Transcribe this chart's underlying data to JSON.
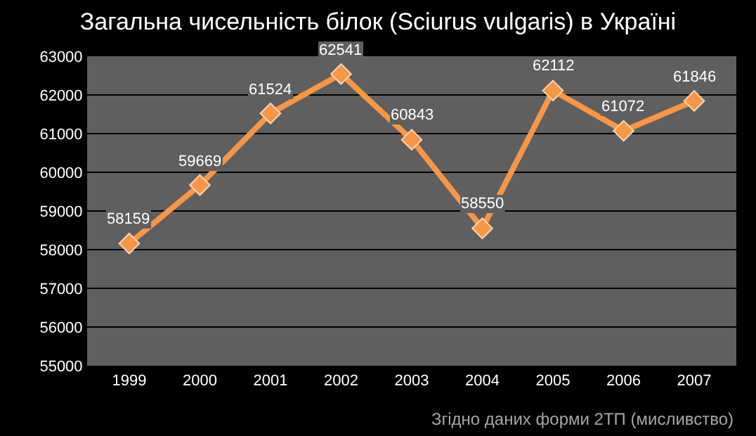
{
  "chart_data": {
    "type": "line",
    "title": "Загальна чисельність білок (Sciurus vulgaris) в Україні",
    "categories": [
      "1999",
      "2000",
      "2001",
      "2002",
      "2003",
      "2004",
      "2005",
      "2006",
      "2007"
    ],
    "series": [
      {
        "color": "#f79646",
        "values": [
          58159,
          59669,
          61524,
          62541,
          60843,
          58550,
          62112,
          61072,
          61846
        ]
      }
    ],
    "ylim": [
      55000,
      63000
    ],
    "yticks": [
      55000,
      56000,
      57000,
      58000,
      59000,
      60000,
      61000,
      62000,
      63000
    ],
    "grid": "y",
    "marker": "diamond",
    "line_style": "solid",
    "data_labels": true,
    "annotations": [
      "Згідно даних форми 2ТП (мисливство)"
    ]
  }
}
